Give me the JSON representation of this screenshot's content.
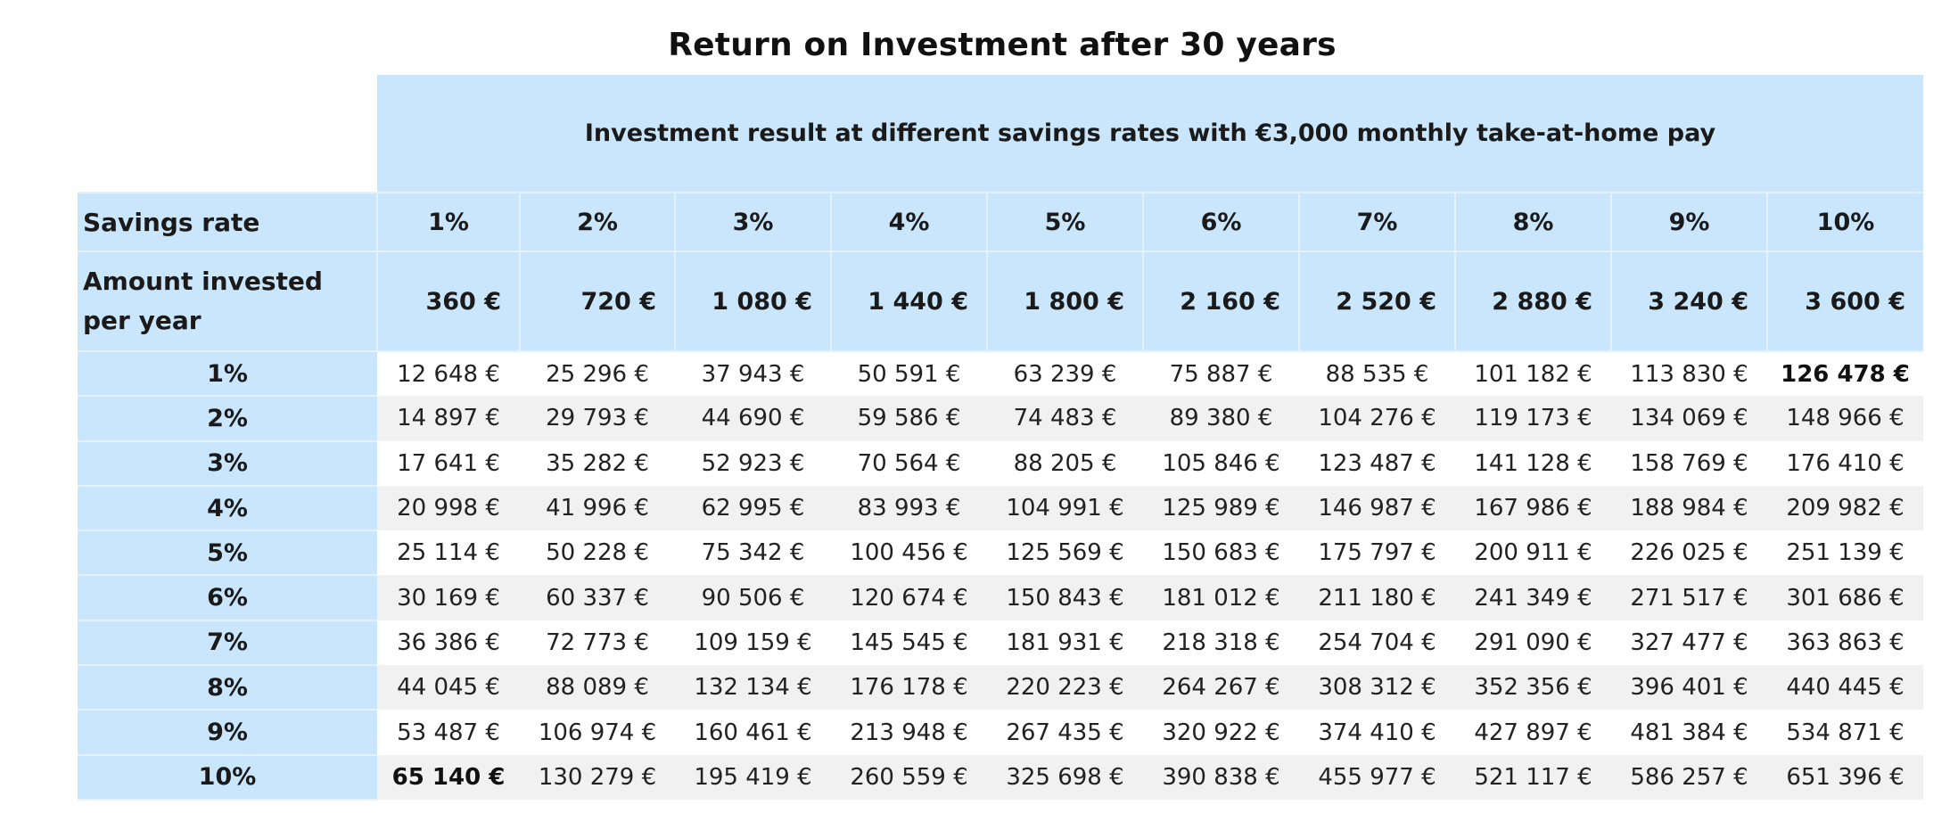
{
  "chart_data": {
    "type": "table",
    "title": "Return on Investment after 30 years",
    "super_header": "Investment result at different savings rates with €3,000 monthly take-at-home pay",
    "savings_rate_label": "Savings rate",
    "amount_label": "Amount invested per year",
    "columns": [
      "1%",
      "2%",
      "3%",
      "4%",
      "5%",
      "6%",
      "7%",
      "8%",
      "9%",
      "10%"
    ],
    "amounts": [
      "360 €",
      "720 €",
      "1 080 €",
      "1 440 €",
      "1 800 €",
      "2 160 €",
      "2 520 €",
      "2 880 €",
      "3 240 €",
      "3 600 €"
    ],
    "rows": [
      {
        "label": "1%",
        "values": [
          "12 648 €",
          "25 296 €",
          "37 943 €",
          "50 591 €",
          "63 239 €",
          "75 887 €",
          "88 535 €",
          "101 182 €",
          "113 830 €",
          "126 478 €"
        ]
      },
      {
        "label": "2%",
        "values": [
          "14 897 €",
          "29 793 €",
          "44 690 €",
          "59 586 €",
          "74 483 €",
          "89 380 €",
          "104 276 €",
          "119 173 €",
          "134 069 €",
          "148 966 €"
        ]
      },
      {
        "label": "3%",
        "values": [
          "17 641 €",
          "35 282 €",
          "52 923 €",
          "70 564 €",
          "88 205 €",
          "105 846 €",
          "123 487 €",
          "141 128 €",
          "158 769 €",
          "176 410 €"
        ]
      },
      {
        "label": "4%",
        "values": [
          "20 998 €",
          "41 996 €",
          "62 995 €",
          "83 993 €",
          "104 991 €",
          "125 989 €",
          "146 987 €",
          "167 986 €",
          "188 984 €",
          "209 982 €"
        ]
      },
      {
        "label": "5%",
        "values": [
          "25 114 €",
          "50 228 €",
          "75 342 €",
          "100 456 €",
          "125 569 €",
          "150 683 €",
          "175 797 €",
          "200 911 €",
          "226 025 €",
          "251 139 €"
        ]
      },
      {
        "label": "6%",
        "values": [
          "30 169 €",
          "60 337 €",
          "90 506 €",
          "120 674 €",
          "150 843 €",
          "181 012 €",
          "211 180 €",
          "241 349 €",
          "271 517 €",
          "301 686 €"
        ]
      },
      {
        "label": "7%",
        "values": [
          "36 386 €",
          "72 773 €",
          "109 159 €",
          "145 545 €",
          "181 931 €",
          "218 318 €",
          "254 704 €",
          "291 090 €",
          "327 477 €",
          "363 863 €"
        ]
      },
      {
        "label": "8%",
        "values": [
          "44 045 €",
          "88 089 €",
          "132 134 €",
          "176 178 €",
          "220 223 €",
          "264 267 €",
          "308 312 €",
          "352 356 €",
          "396 401 €",
          "440 445 €"
        ]
      },
      {
        "label": "9%",
        "values": [
          "53 487 €",
          "106 974 €",
          "160 461 €",
          "213 948 €",
          "267 435 €",
          "320 922 €",
          "374 410 €",
          "427 897 €",
          "481 384 €",
          "534 871 €"
        ]
      },
      {
        "label": "10%",
        "values": [
          "65 140 €",
          "130 279 €",
          "195 419 €",
          "260 559 €",
          "325 698 €",
          "390 838 €",
          "455 977 €",
          "521 117 €",
          "586 257 €",
          "651 396 €"
        ]
      }
    ],
    "bold_cells": [
      {
        "row": 0,
        "col": 9
      },
      {
        "row": 9,
        "col": 0
      }
    ],
    "colors": {
      "header_background": "#c9e6fc",
      "stripe_background": "#f1f1f1"
    }
  }
}
